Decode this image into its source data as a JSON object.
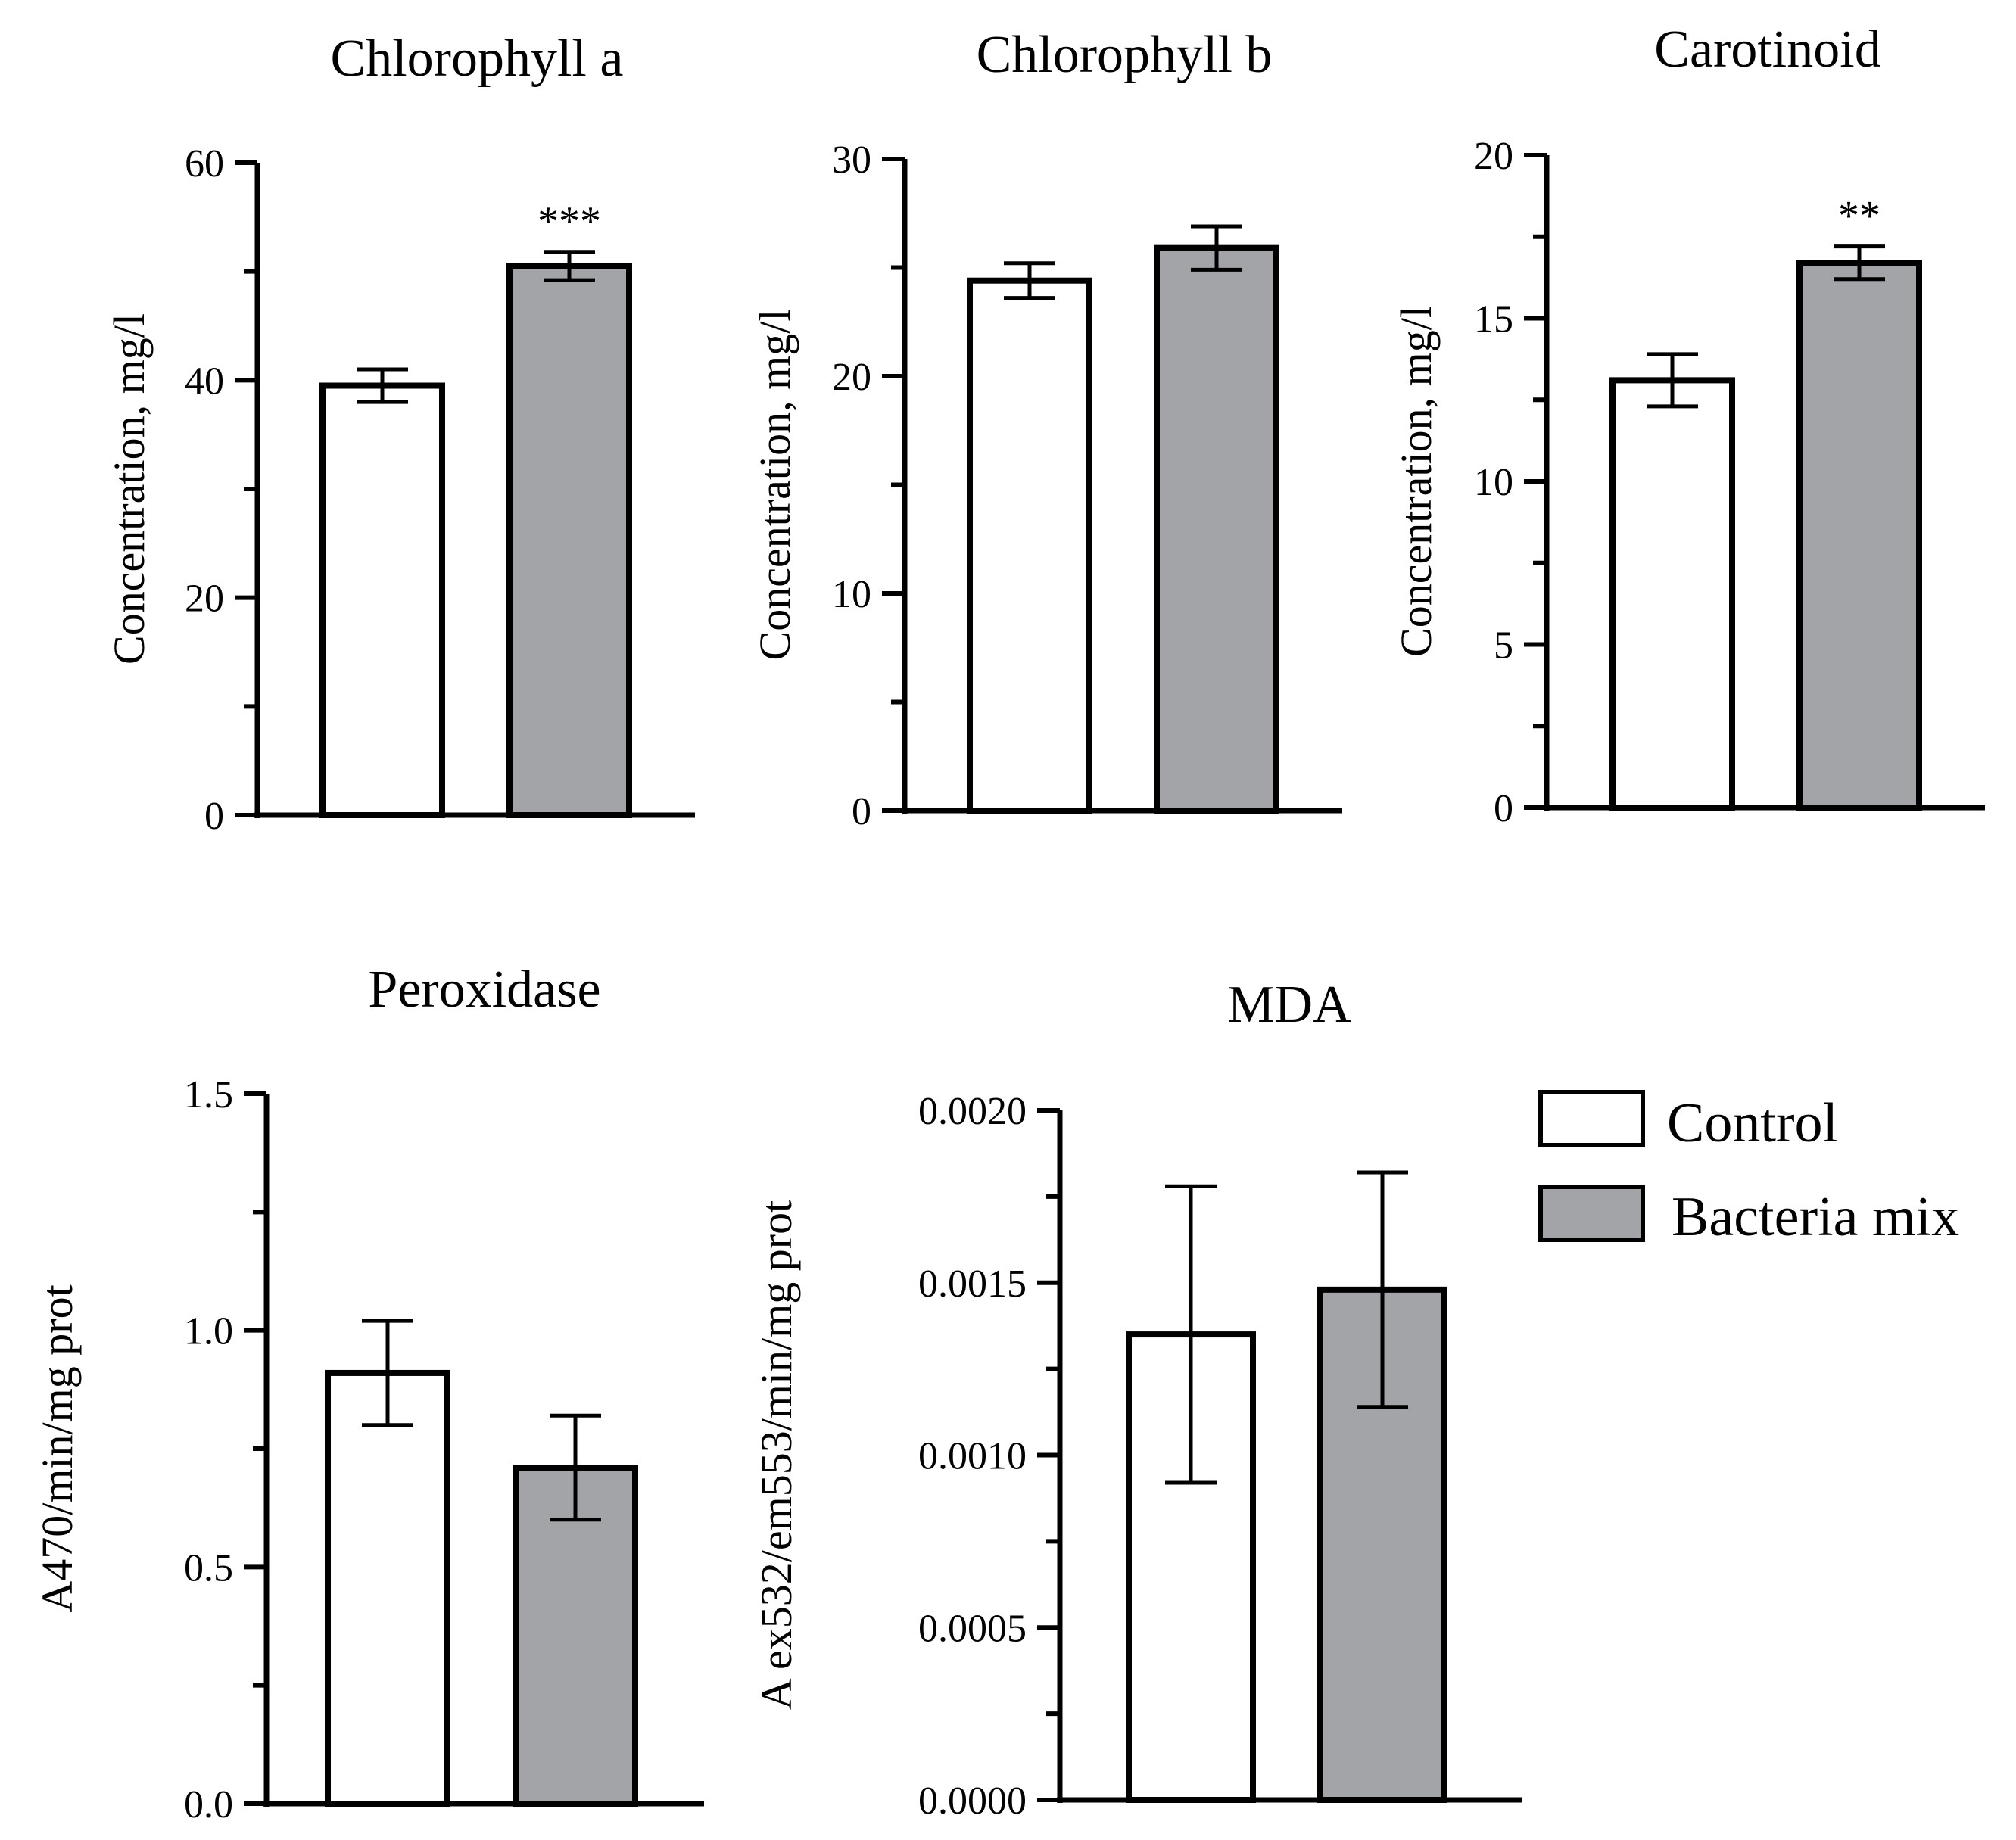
{
  "chart_data": [
    {
      "type": "bar",
      "title": "Chlorophyll a",
      "ylabel": "Concentration, mg/l",
      "xlabel": "",
      "categories": [
        "Control",
        "Bacteria mix"
      ],
      "values": [
        39.5,
        50.5
      ],
      "errors": [
        1.5,
        1.3
      ],
      "ylim": [
        0,
        60
      ],
      "yticks": [
        "0",
        "20",
        "40",
        "60"
      ],
      "significance": [
        "",
        "***"
      ]
    },
    {
      "type": "bar",
      "title": "Chlorophyll b",
      "ylabel": "Concentration, mg/l",
      "xlabel": "",
      "categories": [
        "Control",
        "Bacteria mix"
      ],
      "values": [
        24.4,
        25.9
      ],
      "errors": [
        0.8,
        1.0
      ],
      "ylim": [
        0,
        30
      ],
      "yticks": [
        "0",
        "10",
        "20",
        "30"
      ],
      "significance": [
        "",
        ""
      ]
    },
    {
      "type": "bar",
      "title": "Carotinoid",
      "ylabel": "Concentration, mg/l",
      "xlabel": "",
      "categories": [
        "Control",
        "Bacteria mix"
      ],
      "values": [
        13.1,
        16.7
      ],
      "errors": [
        0.8,
        0.5
      ],
      "ylim": [
        0,
        20
      ],
      "yticks": [
        "0",
        "5",
        "10",
        "15",
        "20"
      ],
      "significance": [
        "",
        "**"
      ]
    },
    {
      "type": "bar",
      "title": "Peroxidase",
      "ylabel": "A470/min/mg prot",
      "xlabel": "",
      "categories": [
        "Control",
        "Bacteria mix"
      ],
      "values": [
        0.91,
        0.71
      ],
      "errors": [
        0.11,
        0.11
      ],
      "ylim": [
        0,
        1.5
      ],
      "yticks": [
        "0.0",
        "0.5",
        "1.0",
        "1.5"
      ],
      "significance": [
        "",
        ""
      ]
    },
    {
      "type": "bar",
      "title": "MDA",
      "ylabel": "A ex532/em553/min/mg prot",
      "xlabel": "",
      "categories": [
        "Control",
        "Bacteria mix"
      ],
      "values": [
        0.00135,
        0.00148
      ],
      "errors": [
        0.00043,
        0.00034
      ],
      "ylim": [
        0,
        0.002
      ],
      "yticks": [
        "0.0000",
        "0.0005",
        "0.0010",
        "0.0015",
        "0.0020"
      ],
      "significance": [
        "",
        ""
      ]
    }
  ],
  "legend": {
    "items": [
      {
        "label": "Control",
        "color": "#ffffff"
      },
      {
        "label": "Bacteria mix",
        "color": "#a3a4a8"
      }
    ]
  },
  "colors": {
    "control": "#ffffff",
    "treatment": "#a3a4a8",
    "stroke": "#000000"
  }
}
